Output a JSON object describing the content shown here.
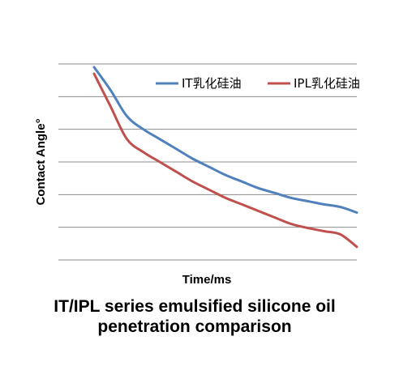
{
  "chart_data": {
    "type": "line",
    "title": "IT/IPL series emulsified silicone oil",
    "subtitle": "penetration comparison",
    "xlabel": "Time/ms",
    "ylabel": "Contact Angle°",
    "x": [
      0,
      1,
      2,
      3,
      4,
      5,
      6,
      7,
      8,
      9,
      10,
      11,
      12,
      13,
      14,
      15,
      16
    ],
    "ylim": [
      0,
      6
    ],
    "grid": true,
    "legend": "top-right",
    "series": [
      {
        "name": "IT乳化硅油",
        "color": "#4f81bd",
        "values": [
          5.9,
          5.2,
          4.4,
          4.0,
          3.7,
          3.4,
          3.1,
          2.85,
          2.6,
          2.4,
          2.2,
          2.05,
          1.9,
          1.8,
          1.7,
          1.62,
          1.45
        ]
      },
      {
        "name": "IPL乳化硅油",
        "color": "#c0504d",
        "values": [
          5.7,
          4.7,
          3.7,
          3.3,
          3.0,
          2.7,
          2.4,
          2.15,
          1.9,
          1.7,
          1.5,
          1.3,
          1.1,
          0.98,
          0.88,
          0.78,
          0.4
        ]
      }
    ]
  }
}
